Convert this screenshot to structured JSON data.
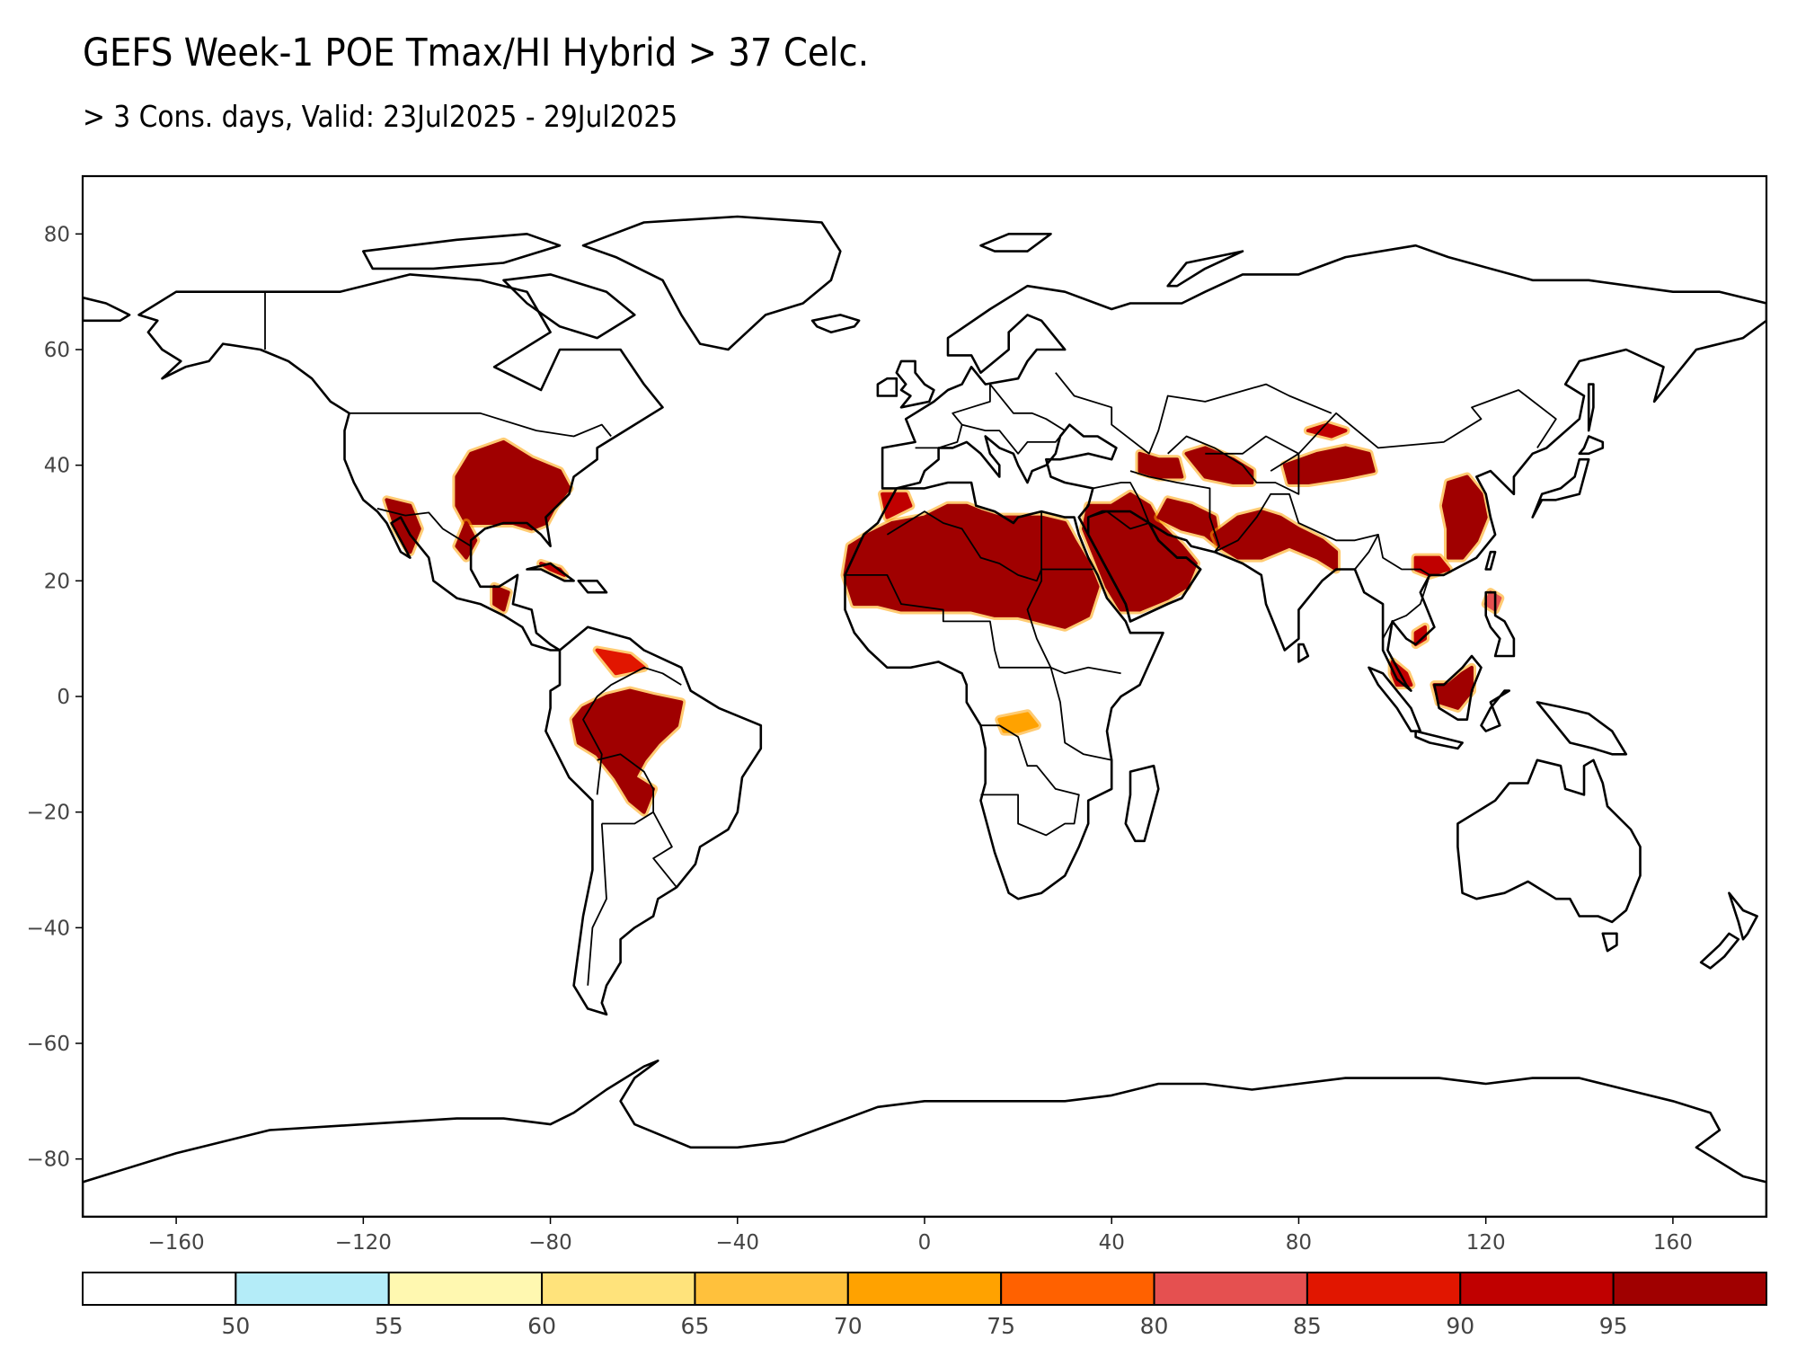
{
  "title": "GEFS Week-1 POE Tmax/HI Hybrid > 37 Celc.",
  "subtitle": "> 3 Cons. days, Valid: 23Jul2025 - 29Jul2025",
  "map": {
    "projection": "equirectangular",
    "lon_range": [
      -180,
      180
    ],
    "lat_range": [
      -90,
      90
    ],
    "lon_ticks": [
      -160,
      -120,
      -80,
      -40,
      0,
      40,
      80,
      120,
      160
    ],
    "lat_ticks": [
      80,
      60,
      40,
      20,
      0,
      -20,
      -40,
      -60,
      -80
    ],
    "shaded_field": "POE percent",
    "hotspots": [
      {
        "region": "Central/Eastern US",
        "lon": -85,
        "lat": 36,
        "level": 95
      },
      {
        "region": "SW US / Mexico",
        "lon": -110,
        "lat": 30,
        "level": 90
      },
      {
        "region": "Amazon Basin",
        "lon": -63,
        "lat": -7,
        "level": 95
      },
      {
        "region": "Sahara",
        "lon": 5,
        "lat": 24,
        "level": 95
      },
      {
        "region": "Arabian Peninsula / Middle East",
        "lon": 45,
        "lat": 27,
        "level": 95
      },
      {
        "region": "Central Asia / NW China",
        "lon": 85,
        "lat": 40,
        "level": 95
      },
      {
        "region": "Eastern China",
        "lon": 115,
        "lat": 30,
        "level": 95
      },
      {
        "region": "Borneo / Malaysia",
        "lon": 112,
        "lat": 1,
        "level": 95
      }
    ]
  },
  "colorbar": {
    "labels": [
      "50",
      "55",
      "60",
      "65",
      "70",
      "75",
      "80",
      "85",
      "90",
      "95"
    ],
    "colors": [
      "#ffffff",
      "#b4ecf8",
      "#fff8b0",
      "#ffe37b",
      "#ffc13c",
      "#ffa200",
      "#ff6100",
      "#e55050",
      "#e11600",
      "#c00000",
      "#a00000"
    ]
  }
}
